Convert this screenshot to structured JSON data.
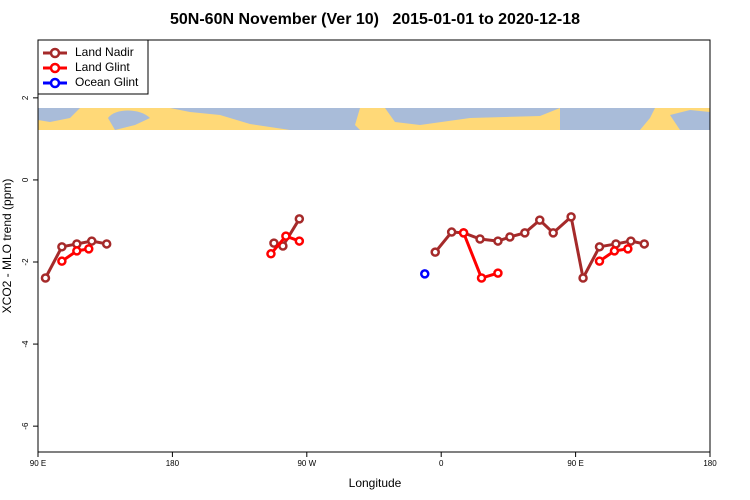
{
  "chart_data": {
    "type": "line",
    "title": "50N-60N November (Ver 10)   2015-01-01 to 2020-12-18",
    "xlabel": "Longitude",
    "ylabel": "XCO2 - MLO trend (ppm)",
    "xlim": [
      90,
      540
    ],
    "ylim": [
      -6.63,
      3.41
    ],
    "xticks": [
      {
        "value": 90,
        "label": "90 E"
      },
      180,
      {
        "value": 270,
        "label": "90 W"
      },
      {
        "value": 360,
        "label": "0"
      },
      {
        "value": 450,
        "label": "90 E"
      },
      {
        "value": 540,
        "label": "180"
      }
    ],
    "yticks": [
      2,
      0,
      -2,
      -4,
      -6
    ],
    "legend": "top-left",
    "series": [
      {
        "name": "Land Nadir",
        "color": "#a52a2a",
        "x": [
          95,
          106,
          116,
          126,
          136,
          null,
          248,
          254,
          265,
          null,
          356,
          367,
          375,
          386,
          398,
          406,
          416,
          426,
          435,
          447,
          455,
          466,
          477,
          487,
          496
        ],
        "values": [
          -2.39,
          -1.63,
          -1.56,
          -1.49,
          -1.56,
          null,
          -1.54,
          -1.61,
          -0.95,
          null,
          -1.76,
          -1.27,
          -1.29,
          -1.44,
          -1.49,
          -1.39,
          -1.29,
          -0.98,
          -1.29,
          -0.9,
          -2.39,
          -1.63,
          -1.56,
          -1.49,
          -1.56
        ]
      },
      {
        "name": "Land Glint",
        "color": "#ff0000",
        "x": [
          106,
          116,
          124,
          null,
          246,
          256,
          265,
          null,
          375,
          387,
          398,
          null,
          466,
          476,
          485
        ],
        "values": [
          -1.98,
          -1.73,
          -1.68,
          null,
          -1.8,
          -1.37,
          -1.49,
          null,
          -1.29,
          -2.39,
          -2.27,
          null,
          -1.98,
          -1.73,
          -1.68
        ]
      },
      {
        "name": "Ocean Glint",
        "color": "#0000ff",
        "x": [
          349
        ],
        "values": [
          -2.29
        ]
      }
    ]
  }
}
